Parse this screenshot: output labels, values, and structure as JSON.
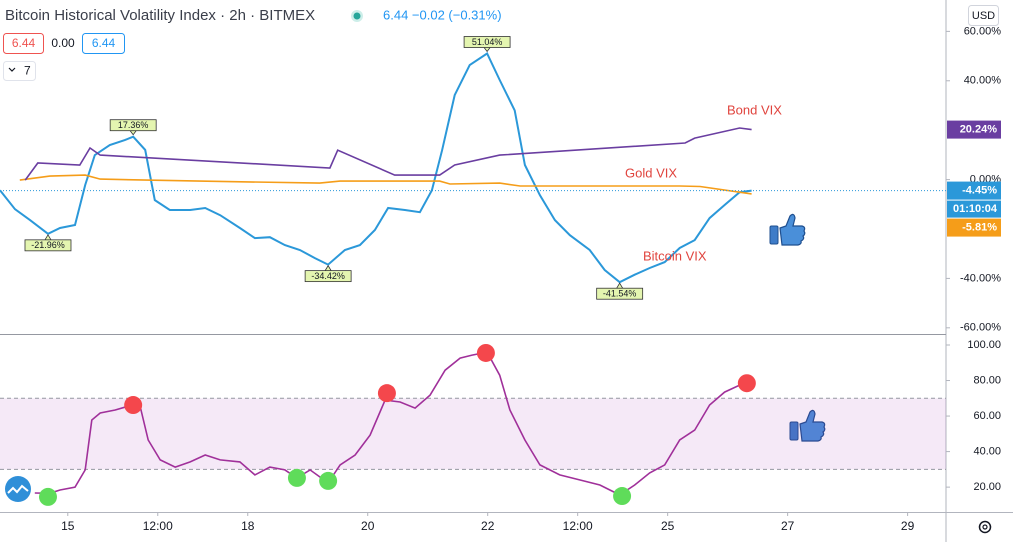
{
  "header": {
    "title": "Bitcoin Historical Volatility Index · 2h · BITMEX",
    "quote": "6.44 −0.02 (−0.31%)",
    "buttons": [
      "6.44",
      "0.00",
      "6.44"
    ],
    "interval": "7",
    "currency": "USD"
  },
  "chart_data": [
    {
      "type": "line",
      "xlim": [
        13.87,
        29.64
      ],
      "xticks": [
        {
          "value": 15,
          "label": "15"
        },
        {
          "value": 16.5,
          "label": "12:00"
        },
        {
          "value": 18,
          "label": "18"
        },
        {
          "value": 20,
          "label": "20"
        },
        {
          "value": 22,
          "label": "22"
        },
        {
          "value": 23.5,
          "label": "12:00"
        },
        {
          "value": 25,
          "label": "25"
        },
        {
          "value": 27,
          "label": "27"
        },
        {
          "value": 29,
          "label": "29"
        }
      ],
      "ylim": [
        -62.1,
        72.7
      ],
      "yticks": [
        {
          "value": 60,
          "label": "60.00%"
        },
        {
          "value": 40,
          "label": "40.00%"
        },
        {
          "value": 0,
          "label": "0.00%"
        },
        {
          "value": -40,
          "label": "-40.00%"
        },
        {
          "value": -60,
          "label": "-60.00%"
        }
      ],
      "series": [
        {
          "name": "Bitcoin VIX",
          "color": "#2b98d9",
          "last_label": "-4.45%",
          "countdown": "01:10:04",
          "x": [
            13.87,
            14.12,
            14.37,
            14.67,
            14.87,
            15.12,
            15.29,
            15.45,
            15.7,
            15.95,
            16.09,
            16.29,
            16.45,
            16.7,
            17.04,
            17.29,
            17.54,
            17.87,
            18.12,
            18.37,
            18.62,
            18.87,
            19.12,
            19.34,
            19.62,
            19.87,
            20.12,
            20.34,
            20.62,
            20.87,
            21.07,
            21.24,
            21.45,
            21.7,
            21.99,
            22.2,
            22.45,
            22.62,
            22.87,
            23.12,
            23.37,
            23.7,
            23.95,
            24.2,
            24.45,
            24.7,
            24.95,
            25.2,
            25.45,
            25.7,
            25.95,
            26.2,
            26.4
          ],
          "values": [
            -4.3,
            -12,
            -16.4,
            -21.96,
            -19.6,
            -18.4,
            -2.2,
            9.9,
            14,
            16,
            17.36,
            12,
            -8.3,
            -12.3,
            -12.3,
            -11.5,
            -14.4,
            -19.6,
            -23.7,
            -23.3,
            -26.5,
            -28.5,
            -31.8,
            -34.42,
            -28.5,
            -26.5,
            -20.4,
            -11.5,
            -12.3,
            -13.2,
            -4.3,
            11.9,
            34.2,
            46.4,
            51.04,
            40.3,
            28,
            5.9,
            -6.3,
            -16.4,
            -22.5,
            -28.5,
            -36.6,
            -41.54,
            -38.5,
            -35.8,
            -33.4,
            -27.7,
            -24.5,
            -15.6,
            -10.3,
            -5.1,
            -4.45
          ]
        },
        {
          "name": "Gold VIX",
          "color": "#f59d19",
          "last_label": "-5.81%",
          "x": [
            14.2,
            14.7,
            15.29,
            15.54,
            17.2,
            19.2,
            19.54,
            21.2,
            21.37,
            22.2,
            22.54,
            25.2,
            25.54,
            26.4
          ],
          "values": [
            -0.2,
            1.4,
            1.8,
            0.2,
            -0.6,
            -1.4,
            -0.6,
            -0.6,
            -1.8,
            -1.4,
            -2.6,
            -2.6,
            -2.8,
            -5.81
          ]
        },
        {
          "name": "Bond VIX",
          "color": "#6a3ea1",
          "last_label": "20.24%",
          "x": [
            14.29,
            14.5,
            15.2,
            15.37,
            15.54,
            19.37,
            19.5,
            20.45,
            21.2,
            21.45,
            22.2,
            25.29,
            25.45,
            26.2,
            26.4
          ],
          "values": [
            -0.2,
            6.7,
            5.9,
            12.8,
            9.9,
            4.7,
            11.9,
            1.8,
            1.8,
            5.9,
            9.9,
            14.8,
            16.8,
            20.9,
            20.24
          ]
        }
      ],
      "annotations": [
        {
          "x": 16.09,
          "value": 17.36,
          "label": "17.36%"
        },
        {
          "x": 14.67,
          "value": -21.96,
          "label": "-21.96%"
        },
        {
          "x": 19.34,
          "value": -34.42,
          "label": "-34.42%"
        },
        {
          "x": 21.99,
          "value": 51.04,
          "label": "51.04%"
        },
        {
          "x": 24.2,
          "value": -41.54,
          "label": "-41.54%"
        }
      ]
    },
    {
      "type": "line",
      "xlim": [
        13.87,
        29.64
      ],
      "ylim": [
        6,
        104.5
      ],
      "yticks": [
        {
          "value": 100,
          "label": "100.00"
        },
        {
          "value": 80,
          "label": "80.00"
        },
        {
          "value": 60,
          "label": "60.00"
        },
        {
          "value": 40,
          "label": "40.00"
        },
        {
          "value": 20,
          "label": "20.00"
        }
      ],
      "band": [
        30,
        70
      ],
      "series": [
        {
          "color": "#a0309a",
          "x": [
            14.45,
            14.7,
            14.87,
            15.12,
            15.29,
            15.4,
            15.54,
            15.79,
            15.95,
            16.2,
            16.34,
            16.54,
            16.79,
            17.04,
            17.29,
            17.54,
            17.87,
            18.12,
            18.37,
            18.62,
            18.82,
            19.04,
            19.34,
            19.54,
            19.79,
            20.04,
            20.29,
            20.54,
            20.79,
            21.04,
            21.29,
            21.54,
            21.74,
            21.99,
            22.2,
            22.37,
            22.62,
            22.87,
            23.2,
            23.54,
            23.87,
            24.2,
            24.45,
            24.7,
            24.95,
            25.2,
            25.45,
            25.7,
            25.95,
            26.2,
            26.4
          ],
          "values": [
            16.7,
            16.5,
            18.4,
            20,
            29.7,
            57.8,
            61.7,
            63.4,
            65,
            66.2,
            46.5,
            35.3,
            31.3,
            34.2,
            38.1,
            35.3,
            34.2,
            26.9,
            31.3,
            29.7,
            25.2,
            29.7,
            22.4,
            32.5,
            38.1,
            49.3,
            69,
            67.9,
            64.5,
            71.8,
            85.8,
            92.6,
            94.3,
            96,
            83,
            63.4,
            46.5,
            32.5,
            26.9,
            24,
            21.2,
            15.6,
            21.2,
            28,
            32.5,
            46.5,
            52.1,
            66.2,
            73.5,
            77.4,
            78.5
          ]
        }
      ],
      "buy_signals": {
        "color": "#5fdc5a",
        "x": [
          14.67,
          18.82,
          19.34,
          24.24
        ],
        "values": [
          14.5,
          25.2,
          23.5,
          15
        ]
      },
      "sell_signals": {
        "color": "#f4474c",
        "x": [
          16.09,
          20.32,
          21.97,
          26.32
        ],
        "values": [
          66.2,
          72.9,
          95.5,
          78.5
        ]
      }
    }
  ]
}
